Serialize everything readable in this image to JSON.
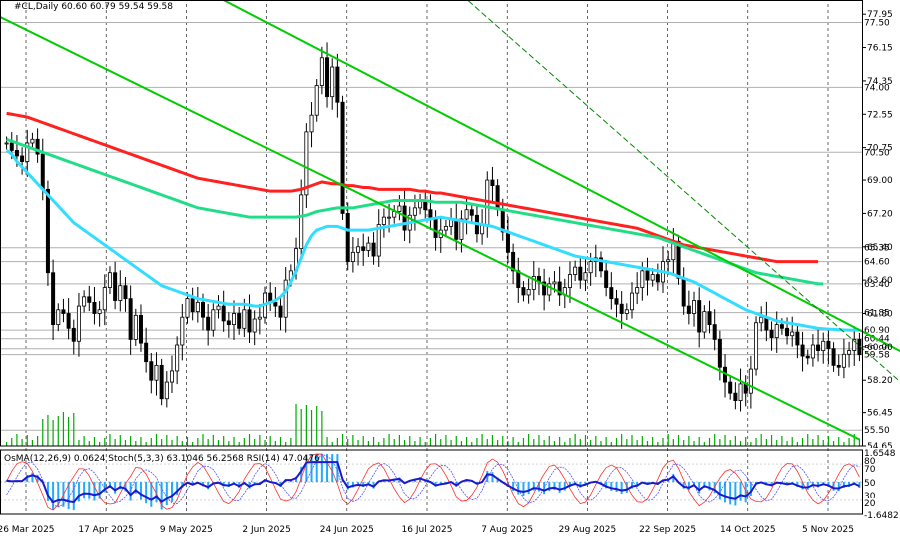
{
  "header": {
    "symbol_line": "#CL,Daily  60.60 60.79 59.54 59.58",
    "indicator_line": "OsMA(12,26,9) 0.0624  Stoch(5,3,3) 63.1046 56.2568  RSI(14) 47.0476"
  },
  "chart_data": {
    "type": "line",
    "price_axis": {
      "ylim": [
        54.65,
        78.5
      ],
      "tick_labels": [
        "77.95",
        "76.15",
        "74.35",
        "72.55",
        "70.75",
        "69.00",
        "67.20",
        "65.40",
        "63.60",
        "61.80",
        "60.00",
        "58.20",
        "56.45",
        "54.65"
      ],
      "tick_values": [
        77.95,
        76.15,
        74.35,
        72.55,
        70.75,
        69.0,
        67.2,
        65.4,
        63.6,
        61.8,
        60.0,
        58.2,
        56.45,
        54.65
      ]
    },
    "level_lines": {
      "values": [
        77.5,
        74.0,
        70.5,
        65.35,
        64.6,
        63.4,
        61.85,
        60.9,
        60.44,
        59.9,
        59.58,
        55.5
      ],
      "labels": [
        "77.50",
        "74.00",
        "70.50",
        "65.35",
        "64.60",
        "63.40",
        "61.85",
        "60.90",
        "60.44",
        "59.90",
        "59.58",
        "55.50"
      ]
    },
    "x_labels": [
      "26 Mar 2025",
      "17 Apr 2025",
      "9 May 2025",
      "2 Jun 2025",
      "24 Jun 2025",
      "16 Jul 2025",
      "7 Aug 2025",
      "29 Aug 2025",
      "22 Sep 2025",
      "14 Oct 2025",
      "5 Nov 2025"
    ],
    "close": [
      71.0,
      70.6,
      70.3,
      70.0,
      71.0,
      71.2,
      70.4,
      68.5,
      64.0,
      61.2,
      62.0,
      61.8,
      61.0,
      60.3,
      62.2,
      62.7,
      62.4,
      61.8,
      62.0,
      63.2,
      64.0,
      62.5,
      63.3,
      62.6,
      60.4,
      61.7,
      60.2,
      59.2,
      58.2,
      59.0,
      57.2,
      58.1,
      58.7,
      60.1,
      61.6,
      62.6,
      61.9,
      62.4,
      61.6,
      60.9,
      62.0,
      62.2,
      61.4,
      61.2,
      61.8,
      61.0,
      62.0,
      60.8,
      61.5,
      61.6,
      62.9,
      62.4,
      62.2,
      61.6,
      63.6,
      64.1,
      65.3,
      68.2,
      71.6,
      72.5,
      74.1,
      75.6,
      73.5,
      75.1,
      73.2,
      67.2,
      64.6,
      65.1,
      65.4,
      65.2,
      65.6,
      64.9,
      66.6,
      67.0,
      67.0,
      67.3,
      67.6,
      66.3,
      67.1,
      67.5,
      67.9,
      67.4,
      66.9,
      65.9,
      66.3,
      66.5,
      66.9,
      65.8,
      66.9,
      67.4,
      67.1,
      66.1,
      66.6,
      69.0,
      68.7,
      67.4,
      66.2,
      65.1,
      64.1,
      63.2,
      62.8,
      63.1,
      63.8,
      63.5,
      62.8,
      63.4,
      63.5,
      62.8,
      63.2,
      63.9,
      64.3,
      63.6,
      64.0,
      64.6,
      64.8,
      64.1,
      63.2,
      62.6,
      62.3,
      61.8,
      62.0,
      62.9,
      63.2,
      64.1,
      63.6,
      63.9,
      63.5,
      64.6,
      64.7,
      65.7,
      63.7,
      62.2,
      61.8,
      62.5,
      60.8,
      61.9,
      61.2,
      60.4,
      58.9,
      58.1,
      57.5,
      57.1,
      58.0,
      57.5,
      58.8,
      61.3,
      61.6,
      60.9,
      60.5,
      61.2,
      61.0,
      60.6,
      60.8,
      60.1,
      59.5,
      59.4,
      60.1,
      59.8,
      60.3,
      59.9,
      59.0,
      58.9,
      59.6,
      59.8,
      60.4,
      59.58
    ],
    "ma_cyan": [
      70.6,
      70.4,
      70.0,
      69.7,
      69.4,
      69.1,
      68.8,
      68.5,
      68.2,
      67.9,
      67.6,
      67.3,
      67.0,
      66.7,
      66.5,
      66.3,
      66.1,
      65.9,
      65.7,
      65.5,
      65.3,
      65.1,
      64.9,
      64.7,
      64.5,
      64.3,
      64.1,
      63.9,
      63.7,
      63.5,
      63.3,
      63.2,
      63.1,
      63.0,
      62.9,
      62.8,
      62.7,
      62.6,
      62.55,
      62.5,
      62.45,
      62.4,
      62.35,
      62.3,
      62.3,
      62.3,
      62.3,
      62.25,
      62.2,
      62.2,
      62.3,
      62.4,
      62.5,
      62.7,
      63.0,
      63.5,
      64.1,
      64.8,
      65.5,
      66.0,
      66.3,
      66.4,
      66.5,
      66.5,
      66.5,
      66.4,
      66.3,
      66.3,
      66.3,
      66.3,
      66.3,
      66.35,
      66.4,
      66.45,
      66.5,
      66.55,
      66.6,
      66.65,
      66.7,
      66.75,
      66.8,
      66.85,
      66.9,
      66.95,
      67.0,
      66.95,
      66.9,
      66.85,
      66.8,
      66.75,
      66.7,
      66.65,
      66.6,
      66.55,
      66.5,
      66.4,
      66.3,
      66.2,
      66.1,
      66.0,
      65.9,
      65.8,
      65.7,
      65.6,
      65.5,
      65.4,
      65.3,
      65.2,
      65.1,
      65.0,
      64.9,
      64.85,
      64.8,
      64.75,
      64.7,
      64.65,
      64.6,
      64.55,
      64.5,
      64.45,
      64.4,
      64.35,
      64.3,
      64.25,
      64.2,
      64.15,
      64.1,
      64.05,
      64.0,
      63.9,
      63.8,
      63.7,
      63.6,
      63.5,
      63.35,
      63.2,
      63.05,
      62.9,
      62.75,
      62.6,
      62.45,
      62.3,
      62.15,
      62.0,
      61.9,
      61.8,
      61.7,
      61.6,
      61.5,
      61.4,
      61.35,
      61.3,
      61.25,
      61.2,
      61.15,
      61.1,
      61.05,
      61.0,
      60.98,
      60.96,
      60.94,
      60.92,
      60.91,
      60.9,
      60.9,
      60.9
    ],
    "ma_green": [
      71.2,
      71.1,
      71.0,
      70.9,
      70.8,
      70.7,
      70.6,
      70.5,
      70.4,
      70.3,
      70.2,
      70.1,
      70.0,
      69.9,
      69.8,
      69.7,
      69.6,
      69.5,
      69.4,
      69.3,
      69.2,
      69.1,
      69.0,
      68.9,
      68.8,
      68.7,
      68.6,
      68.5,
      68.4,
      68.3,
      68.2,
      68.1,
      68.0,
      67.9,
      67.8,
      67.7,
      67.6,
      67.5,
      67.45,
      67.4,
      67.35,
      67.3,
      67.25,
      67.2,
      67.15,
      67.1,
      67.05,
      67.0,
      67.0,
      67.0,
      67.0,
      67.0,
      67.0,
      67.0,
      67.0,
      67.0,
      67.0,
      67.05,
      67.1,
      67.2,
      67.3,
      67.35,
      67.4,
      67.45,
      67.5,
      67.5,
      67.5,
      67.5,
      67.55,
      67.6,
      67.65,
      67.7,
      67.75,
      67.8,
      67.85,
      67.9,
      67.9,
      67.9,
      67.9,
      67.9,
      67.9,
      67.9,
      67.85,
      67.8,
      67.8,
      67.8,
      67.8,
      67.8,
      67.8,
      67.75,
      67.7,
      67.65,
      67.6,
      67.55,
      67.5,
      67.45,
      67.4,
      67.35,
      67.3,
      67.25,
      67.2,
      67.15,
      67.1,
      67.05,
      67.0,
      66.95,
      66.9,
      66.85,
      66.8,
      66.75,
      66.7,
      66.65,
      66.6,
      66.55,
      66.5,
      66.45,
      66.4,
      66.35,
      66.3,
      66.25,
      66.2,
      66.15,
      66.1,
      66.05,
      66.0,
      65.95,
      65.9,
      65.8,
      65.7,
      65.6,
      65.5,
      65.4,
      65.3,
      65.2,
      65.1,
      65.0,
      64.9,
      64.8,
      64.7,
      64.6,
      64.5,
      64.4,
      64.3,
      64.2,
      64.1,
      64.0,
      63.95,
      63.9,
      63.85,
      63.8,
      63.75,
      63.7,
      63.65,
      63.6,
      63.55,
      63.5,
      63.45,
      63.4,
      63.4
    ],
    "ma_red": [
      72.6,
      72.55,
      72.5,
      72.45,
      72.4,
      72.3,
      72.2,
      72.1,
      72.0,
      71.9,
      71.8,
      71.7,
      71.6,
      71.5,
      71.4,
      71.3,
      71.2,
      71.1,
      71.0,
      70.9,
      70.8,
      70.7,
      70.6,
      70.5,
      70.4,
      70.3,
      70.2,
      70.1,
      70.0,
      69.9,
      69.8,
      69.7,
      69.6,
      69.5,
      69.4,
      69.3,
      69.2,
      69.1,
      69.05,
      69.0,
      68.95,
      68.9,
      68.85,
      68.8,
      68.75,
      68.7,
      68.65,
      68.6,
      68.55,
      68.5,
      68.45,
      68.4,
      68.4,
      68.4,
      68.4,
      68.4,
      68.45,
      68.5,
      68.6,
      68.7,
      68.8,
      68.9,
      68.85,
      68.8,
      68.8,
      68.75,
      68.7,
      68.7,
      68.65,
      68.6,
      68.6,
      68.55,
      68.5,
      68.5,
      68.5,
      68.5,
      68.5,
      68.5,
      68.5,
      68.45,
      68.4,
      68.4,
      68.35,
      68.3,
      68.3,
      68.25,
      68.2,
      68.15,
      68.1,
      68.05,
      68.0,
      67.95,
      67.9,
      67.85,
      67.8,
      67.75,
      67.7,
      67.65,
      67.6,
      67.55,
      67.5,
      67.45,
      67.4,
      67.35,
      67.3,
      67.25,
      67.2,
      67.15,
      67.1,
      67.05,
      67.0,
      66.95,
      66.9,
      66.85,
      66.8,
      66.75,
      66.7,
      66.65,
      66.6,
      66.55,
      66.5,
      66.45,
      66.4,
      66.3,
      66.2,
      66.1,
      66.0,
      65.9,
      65.8,
      65.7,
      65.6,
      65.5,
      65.45,
      65.4,
      65.35,
      65.3,
      65.25,
      65.2,
      65.15,
      65.1,
      65.05,
      65.0,
      64.95,
      64.9,
      64.85,
      64.8,
      64.75,
      64.7,
      64.65,
      64.6,
      64.6,
      64.6,
      64.6,
      64.6,
      64.6,
      64.6,
      64.6,
      64.6
    ],
    "channels": [
      {
        "color": "#00cc00",
        "style": "solid",
        "from": [
          -10,
          79.0
        ],
        "to": [
          165,
          55.0
        ]
      },
      {
        "color": "#00cc00",
        "style": "solid",
        "from": [
          40,
          79.0
        ],
        "to": [
          210,
          54.4
        ]
      },
      {
        "color": "#008800",
        "style": "dashed",
        "from": [
          88,
          79.0
        ],
        "to": [
          188,
          54.4
        ]
      }
    ],
    "osma": {
      "label": "OsMA(12,26,9)",
      "value": "0.0624",
      "ylim": [
        -1.6482,
        1.6548
      ],
      "axis_labels": [
        "1.6548",
        "80",
        "70",
        "50",
        "30",
        "20",
        "-1.6482"
      ]
    },
    "stoch": {
      "label": "Stoch(5,3,3)",
      "main": "63.1046",
      "signal": "56.2568"
    },
    "rsi": {
      "label": "RSI(14)",
      "value": "47.0476"
    }
  },
  "colors": {
    "candle": "#000000",
    "ma_red": "#ff2020",
    "ma_green": "#22dd88",
    "ma_cyan": "#33ddff",
    "channel": "#00cc00",
    "osma_hist": "#22aaff",
    "rsi": "#1a1acc",
    "stoch_main": "#ff3030",
    "stoch_signal": "#5555ff",
    "level_line": "#b0b0b0"
  }
}
